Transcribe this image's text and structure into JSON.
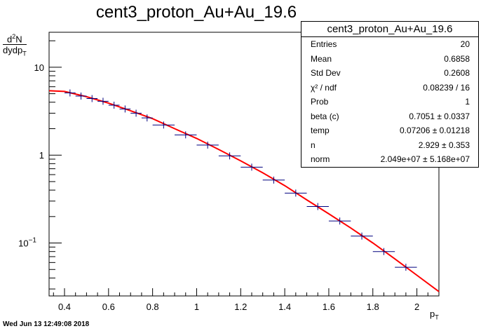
{
  "title": "cent3_proton_Au+Au_19.6",
  "timestamp": "Wed Jun 13 12:49:08 2018",
  "ylabel": {
    "num_pre": "d",
    "num_sup": "2",
    "num_post": "N",
    "den": "dydp",
    "den_sub": "T"
  },
  "xlabel": {
    "main": "p",
    "sub": "T"
  },
  "stats": {
    "title": "cent3_proton_Au+Au_19.6",
    "rows": [
      {
        "key": "Entries",
        "value": "20"
      },
      {
        "key": "Mean",
        "value": "0.6858"
      },
      {
        "key": "Std Dev",
        "value": "0.2608"
      },
      {
        "key": "χ² / ndf",
        "value": "0.08239 / 16"
      },
      {
        "key": "Prob",
        "value": "1"
      },
      {
        "key": "beta (c)",
        "value": "0.7051 ± 0.0337"
      },
      {
        "key": "temp",
        "value": "0.07206 ± 0.01218"
      },
      {
        "key": "n",
        "value": "2.929 ± 0.353"
      },
      {
        "key": "norm",
        "value": "2.049e+07 ± 5.168e+07"
      }
    ]
  },
  "colors": {
    "points": "#00007f",
    "fit": "#ff0000",
    "axis": "#000000"
  },
  "chart_data": {
    "type": "scatter",
    "xlim": [
      0.33,
      2.1
    ],
    "ylim": [
      0.025,
      25
    ],
    "ylog": true,
    "grid": false,
    "x_ticks": [
      "0.4",
      "0.6",
      "0.8",
      "1",
      "1.2",
      "1.4",
      "1.6",
      "1.8",
      "2"
    ],
    "x_tick_values": [
      0.4,
      0.6,
      0.8,
      1.0,
      1.2,
      1.4,
      1.6,
      1.8,
      2.0
    ],
    "y_ticks": [
      {
        "value": 10,
        "base": "10",
        "exp": ""
      },
      {
        "value": 1,
        "base": "1",
        "exp": ""
      },
      {
        "value": 0.1,
        "base": "10",
        "exp": "−1"
      }
    ],
    "series": [
      {
        "x": [
          0.425,
          0.475,
          0.525,
          0.575,
          0.625,
          0.675,
          0.725,
          0.775,
          0.85,
          0.95,
          1.05,
          1.15,
          1.25,
          1.35,
          1.45,
          1.55,
          1.65,
          1.75,
          1.85,
          1.95
        ],
        "xerr": [
          0.025,
          0.025,
          0.025,
          0.025,
          0.025,
          0.025,
          0.025,
          0.025,
          0.05,
          0.05,
          0.05,
          0.05,
          0.05,
          0.05,
          0.05,
          0.05,
          0.05,
          0.05,
          0.05,
          0.05
        ],
        "y": [
          5.1,
          4.7,
          4.4,
          4.1,
          3.7,
          3.35,
          3.0,
          2.65,
          2.2,
          1.7,
          1.3,
          0.98,
          0.73,
          0.52,
          0.37,
          0.26,
          0.178,
          0.12,
          0.08,
          0.053
        ]
      }
    ],
    "fit_curve": {
      "x": [
        0.33,
        0.4,
        0.5,
        0.6,
        0.7,
        0.8,
        0.9,
        1.0,
        1.1,
        1.2,
        1.3,
        1.4,
        1.5,
        1.6,
        1.7,
        1.8,
        1.9,
        2.0,
        2.1
      ],
      "y": [
        5.4,
        5.3,
        4.62,
        3.9,
        3.2,
        2.6,
        2.0,
        1.55,
        1.16,
        0.86,
        0.63,
        0.45,
        0.31,
        0.215,
        0.148,
        0.1,
        0.066,
        0.043,
        0.028
      ]
    }
  }
}
